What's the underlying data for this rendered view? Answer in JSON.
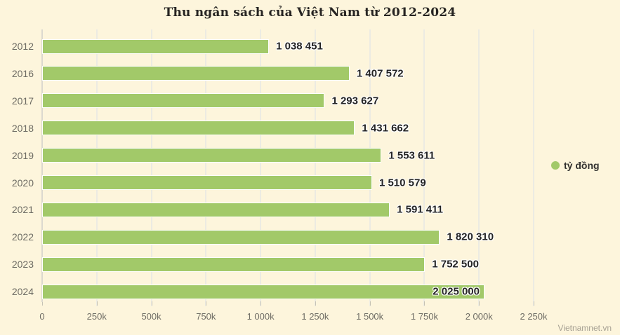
{
  "title": "Thu ngân sách của Việt Nam từ 2012-2024",
  "legend": {
    "label": "tỷ đồng",
    "marker_color": "#a2c969"
  },
  "watermark": "Vietnamnet.vn",
  "colors": {
    "background": "#fdf5dc",
    "bar": "#a2c969",
    "gridline": "#ecebe2",
    "title_text": "#262422",
    "axis_text": "#6e6c64",
    "value_text": "#242424"
  },
  "chart_data": {
    "type": "bar",
    "orientation": "horizontal",
    "title": "Thu ngân sách của Việt Nam từ 2012-2024",
    "categories": [
      "2012",
      "2016",
      "2017",
      "2018",
      "2019",
      "2020",
      "2021",
      "2022",
      "2023",
      "2024"
    ],
    "values": [
      1038451,
      1407572,
      1293627,
      1431662,
      1553611,
      1510579,
      1591411,
      1820310,
      1752500,
      2025000
    ],
    "value_labels": [
      "1 038 451",
      "1 407 572",
      "1 293 627",
      "1 431 662",
      "1 553 611",
      "1 510 579",
      "1 591 411",
      "1 820 310",
      "1 752 500",
      "2 025 000"
    ],
    "series_name": "tỷ đồng",
    "xlabel": "",
    "ylabel": "",
    "xlim": [
      0,
      2250000
    ],
    "x_tick_values": [
      0,
      250000,
      500000,
      750000,
      1000000,
      1250000,
      1500000,
      1750000,
      2000000,
      2250000
    ],
    "x_tick_labels": [
      "0",
      "250k",
      "500k",
      "750k",
      "1 000k",
      "1 250k",
      "1 500k",
      "1 750k",
      "2 000k",
      "2 250k"
    ],
    "grid": true,
    "legend_position": "right"
  }
}
